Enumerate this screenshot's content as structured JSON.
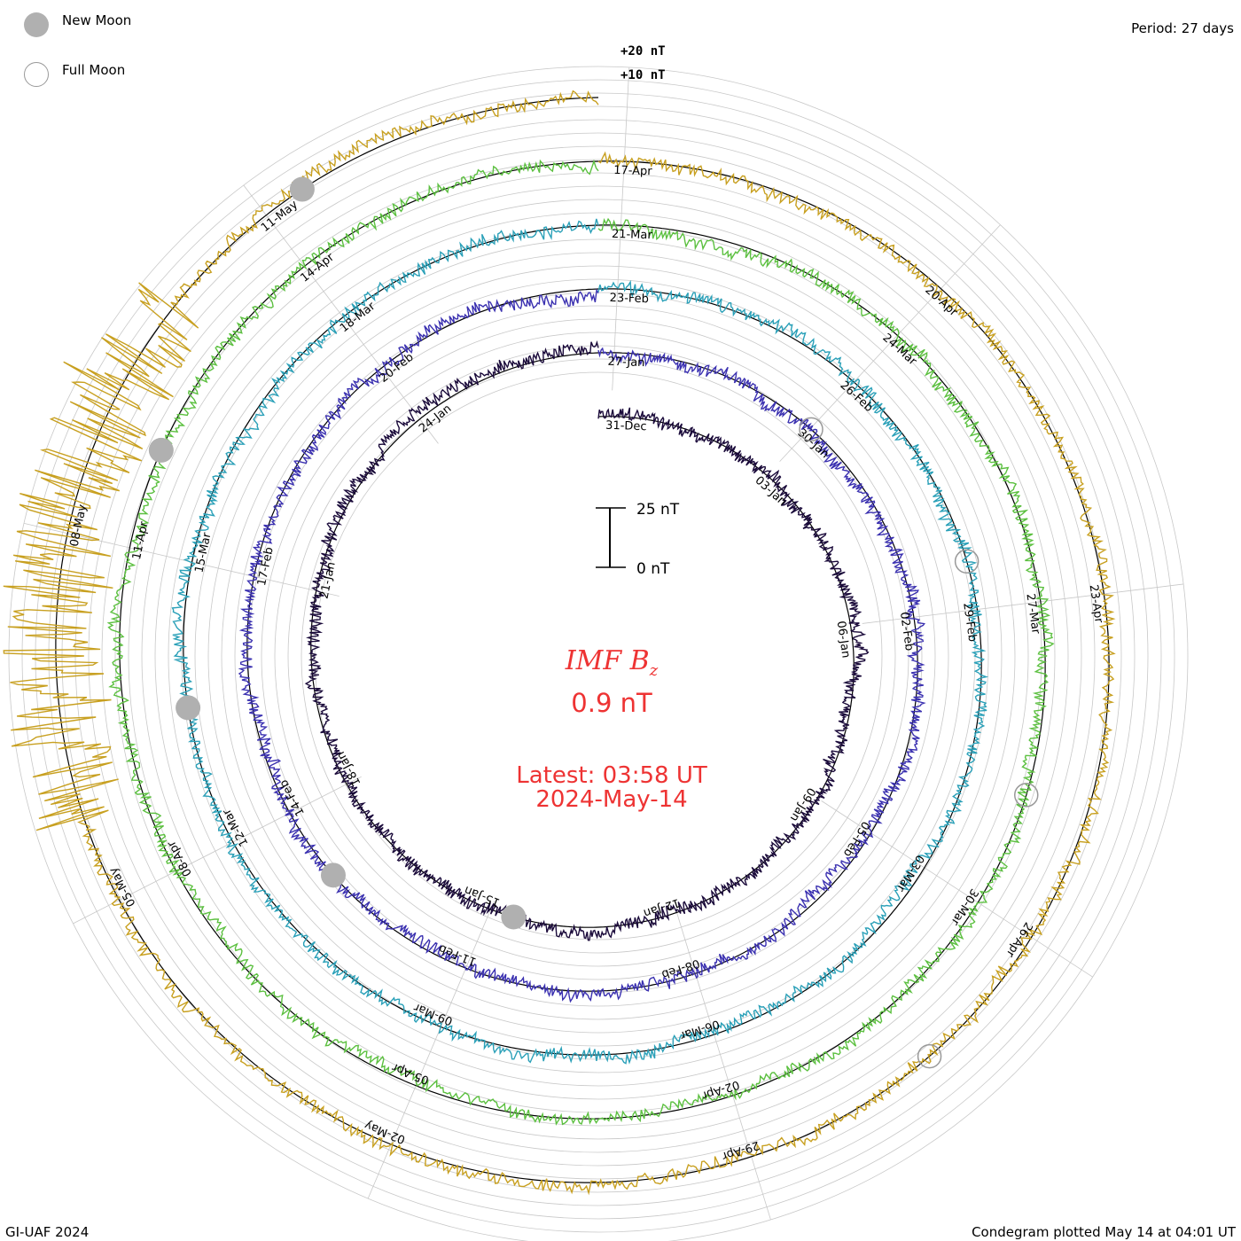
{
  "header": {
    "legend_new_moon": "New Moon",
    "legend_full_moon": "Full Moon",
    "period": "Period: 27 days"
  },
  "footer": {
    "left": "GI-UAF 2024",
    "right": "Condegram plotted May 14 at 04:01 UT"
  },
  "center": {
    "title": "IMF B",
    "title_sub": "z",
    "value": "0.9 nT",
    "latest": "Latest: 03:58 UT",
    "date": "2024-May-14"
  },
  "colors": {
    "title": "#ee3333",
    "grid": "#c8c8c8",
    "new_moon": "#b0b0b0",
    "full_moon": "#999999"
  },
  "chart_data": {
    "type": "line",
    "title": "IMF Bz",
    "chart_form": "spiral condegram",
    "period_days": 27,
    "units": "nT",
    "start_date": "2023-12-31",
    "end_date": "2024-05-14",
    "scale_bar": {
      "min_label": "0 nT",
      "max_label": "25 nT",
      "min": 0,
      "max": 25
    },
    "reference_labels": [
      "+20 nT",
      "+10 nT"
    ],
    "latest_value": 0.9,
    "latest_time": "03:58 UT",
    "latest_date": "2024-May-14",
    "turns": [
      {
        "turn": 1,
        "color": "#1a0a3a",
        "labels": [
          "31-Dec",
          "03-Jan",
          "06-Jan",
          "09-Jan",
          "12-Jan",
          "15-Jan",
          "18-Jan",
          "21-Jan",
          "24-Jan"
        ]
      },
      {
        "turn": 2,
        "color": "#3a30b0",
        "labels": [
          "27-Jan",
          "30-Jan",
          "02-Feb",
          "05-Feb",
          "08-Feb",
          "11-Feb",
          "14-Feb",
          "17-Feb",
          "20-Feb"
        ]
      },
      {
        "turn": 3,
        "color": "#2aa0b8",
        "labels": [
          "23-Feb",
          "26-Feb",
          "29-Feb",
          "03-Mar",
          "06-Mar",
          "09-Mar",
          "12-Mar",
          "15-Mar",
          "18-Mar"
        ]
      },
      {
        "turn": 4,
        "color": "#5cc040",
        "labels": [
          "21-Mar",
          "24-Mar",
          "27-Mar",
          "30-Mar",
          "02-Apr",
          "05-Apr",
          "08-Apr",
          "11-Apr",
          "14-Apr"
        ]
      },
      {
        "turn": 5,
        "color": "#c8a020",
        "labels": [
          "17-Apr",
          "20-Apr",
          "23-Apr",
          "26-Apr",
          "29-Apr",
          "02-May",
          "05-May",
          "08-May",
          "11-May"
        ]
      }
    ],
    "moon_phases": {
      "new_moon": [
        "11-Jan",
        "09-Feb",
        "10-Mar",
        "08-Apr",
        "08-May"
      ],
      "full_moon": [
        "25-Jan",
        "24-Feb",
        "25-Mar",
        "23-Apr"
      ]
    },
    "storm_event": {
      "date": "10-May to 11-May",
      "description": "large Bz excursions during final turn"
    }
  }
}
